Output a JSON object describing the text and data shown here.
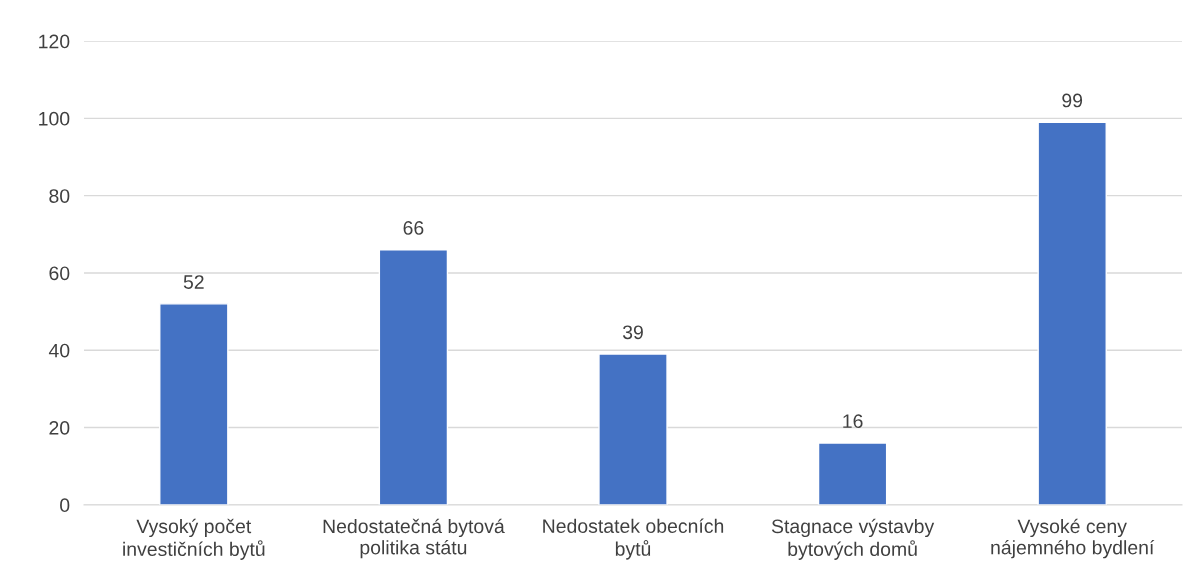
{
  "chart_data": {
    "type": "bar",
    "categories": [
      "Vysoký počet investičních bytů",
      "Nedostatečná bytová politika státu",
      "Nedostatek obecních bytů",
      "Stagnace výstavby bytových domů",
      "Vysoké ceny nájemného bydlení"
    ],
    "values": [
      52,
      66,
      39,
      16,
      99
    ],
    "color": "#4472c4",
    "ylim": [
      0,
      120
    ],
    "yticks": [
      0,
      20,
      40,
      60,
      80,
      100,
      120
    ],
    "grid": "y",
    "data_labels": true
  }
}
